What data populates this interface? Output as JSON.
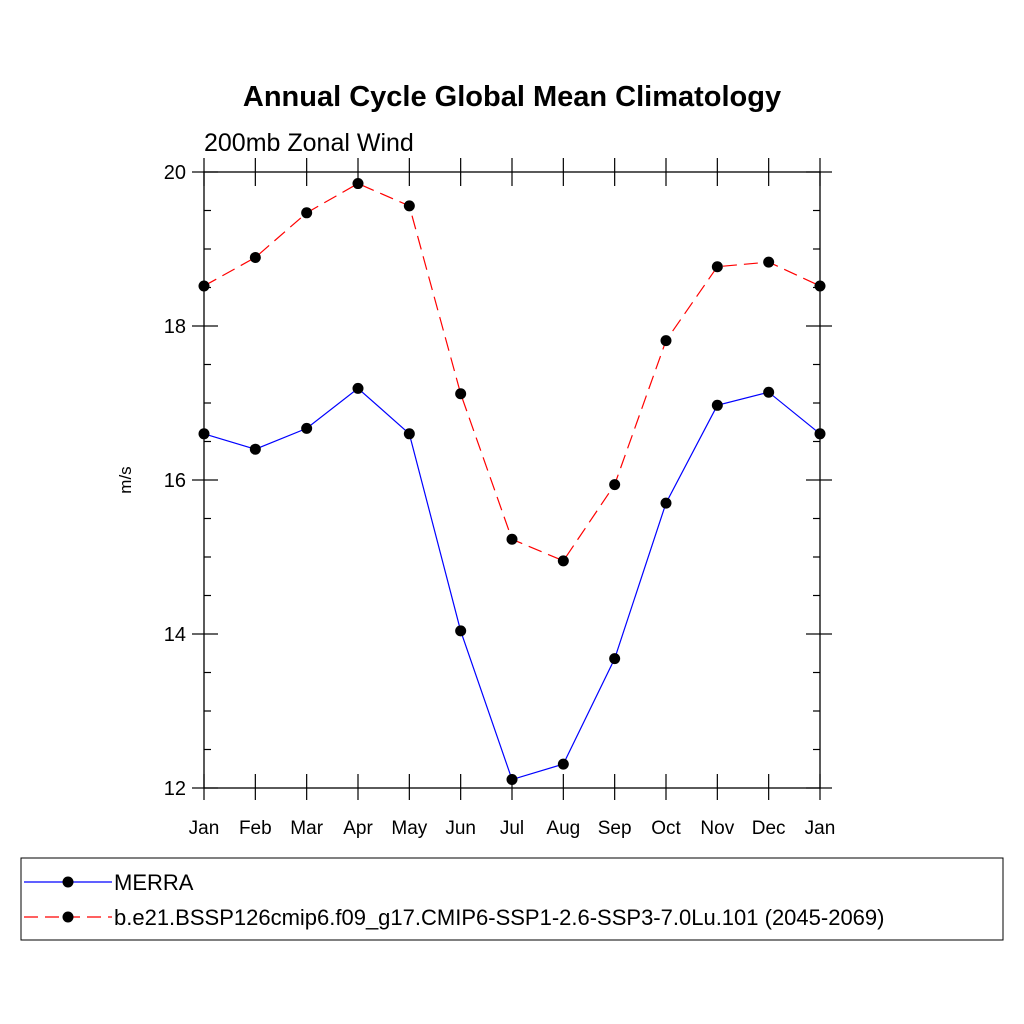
{
  "chart_data": {
    "type": "line",
    "title": "Annual Cycle Global Mean Climatology",
    "subtitle": "200mb Zonal Wind",
    "ylabel": "m/s",
    "xlabel": "",
    "categories": [
      "Jan",
      "Feb",
      "Mar",
      "Apr",
      "May",
      "Jun",
      "Jul",
      "Aug",
      "Sep",
      "Oct",
      "Nov",
      "Dec",
      "Jan"
    ],
    "ylim": [
      12,
      20
    ],
    "yticks": [
      "12",
      "14",
      "16",
      "18",
      "20"
    ],
    "series": [
      {
        "name": "MERRA",
        "color": "#0000ff",
        "dash": "solid",
        "values": [
          16.6,
          16.4,
          16.67,
          17.19,
          16.6,
          14.04,
          12.11,
          12.31,
          13.68,
          15.7,
          16.97,
          17.14,
          16.6
        ]
      },
      {
        "name": "b.e21.BSSP126cmip6.f09_g17.CMIP6-SSP1-2.6-SSP3-7.0Lu.101 (2045-2069)",
        "color": "#ff0000",
        "dash": "dashed",
        "values": [
          18.52,
          18.89,
          19.47,
          19.85,
          19.56,
          17.12,
          15.23,
          14.95,
          15.94,
          17.81,
          18.77,
          18.83,
          18.52
        ]
      }
    ],
    "legend_position": "bottom",
    "grid": false
  }
}
